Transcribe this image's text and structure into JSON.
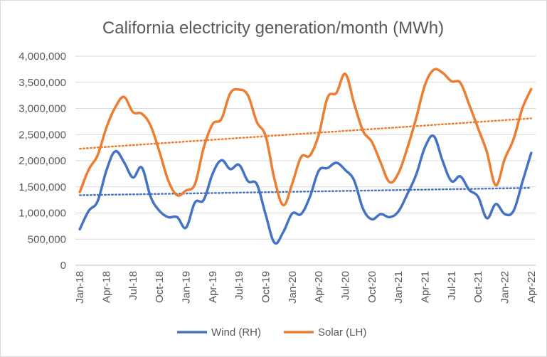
{
  "chart_data": {
    "type": "line",
    "title": "California electricity generation/month (MWh)",
    "x": [
      "Jan-18",
      "Feb-18",
      "Mar-18",
      "Apr-18",
      "May-18",
      "Jun-18",
      "Jul-18",
      "Aug-18",
      "Sep-18",
      "Oct-18",
      "Nov-18",
      "Dec-18",
      "Jan-19",
      "Feb-19",
      "Mar-19",
      "Apr-19",
      "May-19",
      "Jun-19",
      "Jul-19",
      "Aug-19",
      "Sep-19",
      "Oct-19",
      "Nov-19",
      "Dec-19",
      "Jan-20",
      "Feb-20",
      "Mar-20",
      "Apr-20",
      "May-20",
      "Jun-20",
      "Jul-20",
      "Aug-20",
      "Sep-20",
      "Oct-20",
      "Nov-20",
      "Dec-20",
      "Jan-21",
      "Feb-21",
      "Mar-21",
      "Apr-21",
      "May-21",
      "Jun-21",
      "Jul-21",
      "Aug-21",
      "Sep-21",
      "Oct-21",
      "Nov-21",
      "Dec-21",
      "Jan-22",
      "Feb-22",
      "Mar-22",
      "Apr-22"
    ],
    "x_tick_labels": [
      "Jan-18",
      "Apr-18",
      "Jul-18",
      "Oct-18",
      "Jan-19",
      "Apr-19",
      "Jul-19",
      "Oct-19",
      "Jan-20",
      "Apr-20",
      "Jul-20",
      "Oct-20",
      "Jan-21",
      "Apr-21",
      "Jul-21",
      "Oct-21",
      "Jan-22",
      "Apr-22"
    ],
    "y_tick_labels": [
      "0",
      "500,000",
      "1,000,000",
      "1,500,000",
      "2,000,000",
      "2,500,000",
      "3,000,000",
      "3,500,000",
      "4,000,000"
    ],
    "ylim": [
      0,
      4000000
    ],
    "grid": "horizontal",
    "legend_position": "bottom",
    "series": [
      {
        "name": "Wind (RH)",
        "color": "#4472C4",
        "values": [
          690000,
          1040000,
          1220000,
          1810000,
          2180000,
          1970000,
          1680000,
          1870000,
          1310000,
          1040000,
          920000,
          920000,
          720000,
          1200000,
          1250000,
          1750000,
          2010000,
          1840000,
          1920000,
          1610000,
          1550000,
          970000,
          430000,
          640000,
          990000,
          980000,
          1310000,
          1810000,
          1860000,
          1960000,
          1820000,
          1620000,
          1080000,
          880000,
          980000,
          920000,
          1030000,
          1360000,
          1730000,
          2260000,
          2470000,
          1990000,
          1610000,
          1700000,
          1440000,
          1310000,
          900000,
          1170000,
          980000,
          1040000,
          1590000,
          2150000
        ],
        "trend": [
          1340000,
          1480000
        ]
      },
      {
        "name": "Solar (LH)",
        "color": "#ED7D31",
        "values": [
          1400000,
          1830000,
          2100000,
          2630000,
          3020000,
          3220000,
          2930000,
          2900000,
          2670000,
          2170000,
          1620000,
          1340000,
          1430000,
          1550000,
          2250000,
          2700000,
          2800000,
          3290000,
          3360000,
          3250000,
          2740000,
          2470000,
          1640000,
          1150000,
          1560000,
          2070000,
          2100000,
          2500000,
          3210000,
          3300000,
          3660000,
          3090000,
          2570000,
          2360000,
          1960000,
          1590000,
          1760000,
          2240000,
          2810000,
          3450000,
          3740000,
          3680000,
          3520000,
          3490000,
          3070000,
          2620000,
          2160000,
          1530000,
          2030000,
          2410000,
          3000000,
          3370000
        ],
        "trend": [
          2230000,
          2810000
        ]
      }
    ]
  }
}
